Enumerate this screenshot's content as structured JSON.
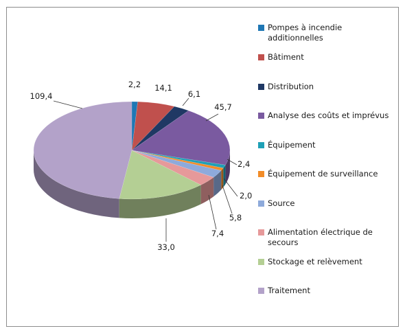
{
  "chart_data": {
    "type": "pie",
    "title": "",
    "categories": [
      "Pompes à incendie additionnelles",
      "Bâtiment",
      "Distribution",
      "Analyse des coûts et imprévus",
      "Équipement",
      "Équipement de surveillance",
      "Source",
      "Alimentation électrique de secours",
      "Stockage et relèvement",
      "Traitement"
    ],
    "values": [
      2.2,
      14.1,
      6.1,
      45.7,
      2.4,
      2.0,
      5.8,
      7.4,
      33.0,
      109.4
    ],
    "data_labels": [
      "2,2",
      "14,1",
      "6,1",
      "45,7",
      "2,4",
      "2,0",
      "5,8",
      "7,4",
      "33,0",
      "109,4"
    ],
    "colors": [
      "#1f77b4",
      "#c0504d",
      "#1f3864",
      "#7a5aa0",
      "#1fa0b6",
      "#f28c28",
      "#8eaadb",
      "#e6999a",
      "#b4cf94",
      "#b3a2c9"
    ],
    "legend_placement": "right",
    "style": "3d"
  }
}
